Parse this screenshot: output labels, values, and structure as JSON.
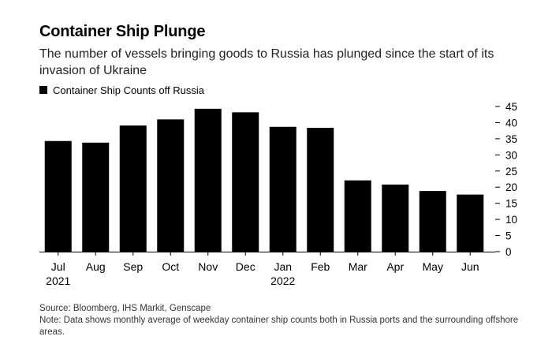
{
  "header": {
    "title": "Container Ship Plunge",
    "subtitle": "The number of vessels bringing goods to Russia has plunged since the start of its invasion of Ukraine"
  },
  "legend": {
    "label": "Container Ship Counts off Russia",
    "swatch_color": "#000000"
  },
  "footer": {
    "source": "Source: Bloomberg, IHS Markit, Genscape",
    "note": "Note: Data shows monthly average of weekday container ship counts both in Russia ports and the surrounding offshore areas."
  },
  "chart_data": {
    "type": "bar",
    "title": "Container Ship Plunge",
    "subtitle": "The number of vessels bringing goods to Russia has plunged since the start of its invasion of Ukraine",
    "xlabel": "",
    "ylabel": "",
    "categories": [
      "Jul",
      "Aug",
      "Sep",
      "Oct",
      "Nov",
      "Dec",
      "Jan",
      "Feb",
      "Mar",
      "Apr",
      "May",
      "Jun"
    ],
    "category_years": [
      "2021",
      "",
      "",
      "",
      "",
      "",
      "2022",
      "",
      "",
      "",
      "",
      ""
    ],
    "series": [
      {
        "name": "Container Ship Counts off Russia",
        "color": "#000000",
        "values": [
          34.3,
          33.8,
          39.1,
          41.0,
          44.3,
          43.2,
          38.7,
          38.4,
          22.1,
          20.8,
          18.8,
          17.7
        ]
      }
    ],
    "ylim": [
      0,
      45
    ],
    "yticks": [
      0,
      5,
      10,
      15,
      20,
      25,
      30,
      35,
      40,
      45
    ],
    "y_axis_position": "right",
    "grid": false,
    "legend_position": "top-left"
  }
}
